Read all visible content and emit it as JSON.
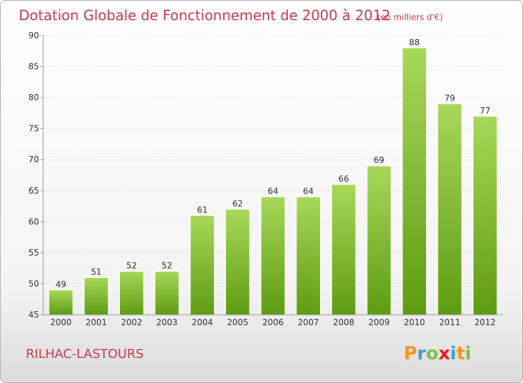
{
  "chart_data": {
    "type": "bar",
    "title": "Dotation Globale de Fonctionnement de 2000 à 2012",
    "unit_note": "(en milliers d'€)",
    "categories": [
      "2000",
      "2001",
      "2002",
      "2003",
      "2004",
      "2005",
      "2006",
      "2007",
      "2008",
      "2009",
      "2010",
      "2011",
      "2012"
    ],
    "values": [
      49,
      51,
      52,
      52,
      61,
      62,
      64,
      64,
      66,
      69,
      88,
      79,
      77
    ],
    "ylim": [
      45,
      90
    ],
    "yticks": [
      45,
      50,
      55,
      60,
      65,
      70,
      75,
      80,
      85,
      90
    ],
    "grid": true,
    "xlabel": "",
    "ylabel": "",
    "bar_color_top": "#a8d85a",
    "bar_color_bottom": "#5e9c12"
  },
  "location": "RILHAC-LASTOURS",
  "brand": {
    "letters": [
      "P",
      "r",
      "o",
      "x",
      "i",
      "t",
      "i"
    ],
    "colors": [
      "#f7941d",
      "#3aa0d8",
      "#7cc242",
      "#ec1c24",
      "#3aa0d8",
      "#f7941d",
      "#7cc242"
    ]
  }
}
